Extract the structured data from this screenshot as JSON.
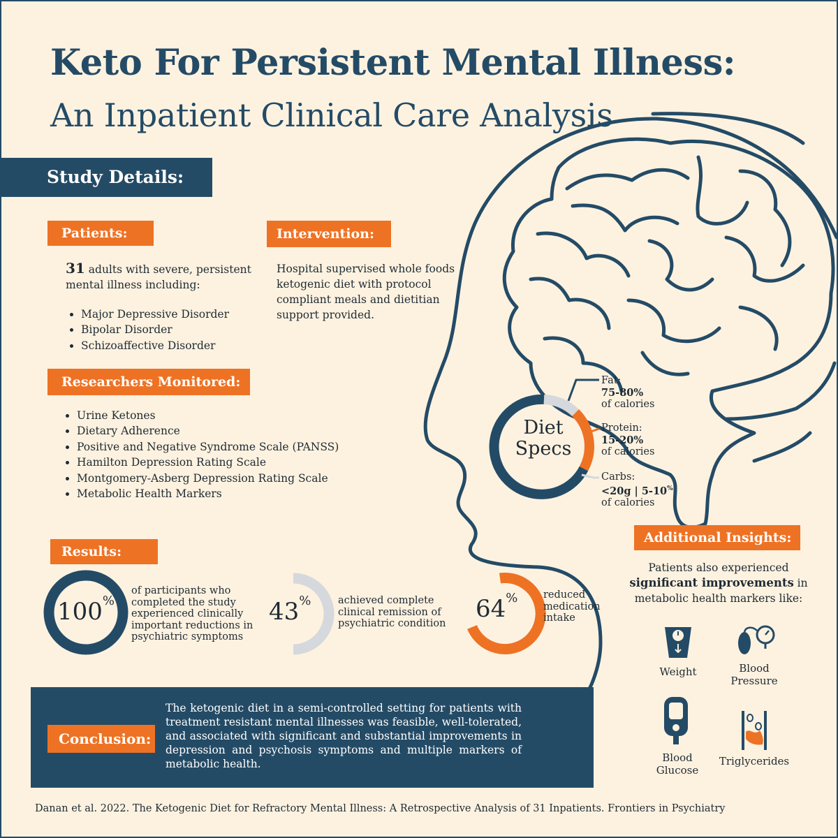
{
  "title": {
    "line1": "Keto For Persistent Mental Illness:",
    "line2": "An Inpatient Clinical Care Analysis"
  },
  "study_details": "Study Details:",
  "patients": {
    "heading": "Patients:",
    "count": "31",
    "description_line1": "adults with severe, persistent",
    "description_line2": "mental illness including:",
    "conditions": [
      "Major Depressive Disorder",
      "Bipolar Disorder",
      "Schizoaffective Disorder"
    ]
  },
  "intervention": {
    "heading": "Intervention:",
    "lines": [
      "Hospital supervised whole foods",
      "ketogenic diet with protocol",
      "compliant meals and dietitian",
      "support provided."
    ]
  },
  "researchers": {
    "heading": "Researchers Monitored:",
    "items": [
      "Urine Ketones",
      "Dietary Adherence",
      "Positive and Negative Syndrome Scale (PANSS)",
      "Hamilton Depression Rating Scale",
      "Montgomery-Asberg Depression Rating Scale",
      "Metabolic Health Markers"
    ]
  },
  "diet_specs": {
    "label_line1": "Diet",
    "label_line2": "Specs",
    "fat": {
      "label": "Fat:",
      "value": "75-80%",
      "unit": "of calories"
    },
    "protein": {
      "label": "Protein:",
      "value": "15-20%",
      "unit": "of calories"
    },
    "carbs": {
      "label": "Carbs:",
      "value": "<20g | 5-10",
      "pct": "%",
      "unit": "of calories"
    }
  },
  "results": {
    "heading": "Results:",
    "stats": [
      {
        "value": "100",
        "pct": "%",
        "fraction": 1.0,
        "lines": [
          "of participants who",
          "completed the study",
          "experienced clinically",
          "important reductions in",
          "psychiatric symptoms"
        ]
      },
      {
        "value": "43",
        "pct": "%",
        "fraction": 0.43,
        "lines": [
          "achieved complete",
          "clinical remission of",
          "psychiatric condition"
        ]
      },
      {
        "value": "64",
        "pct": "%",
        "fraction": 0.64,
        "lines": [
          "reduced",
          "medication",
          "intake"
        ]
      }
    ]
  },
  "insights": {
    "heading": "Additional Insights:",
    "line1": "Patients also experienced",
    "line2_bold": "significant improvements",
    "line2_rest": " in",
    "line3": "metabolic health markers like:",
    "markers": [
      {
        "label_lines": [
          "Weight"
        ],
        "icon": "scale-icon"
      },
      {
        "label_lines": [
          "Blood",
          "Pressure"
        ],
        "icon": "blood-pressure-icon"
      },
      {
        "label_lines": [
          "Blood",
          "Glucose"
        ],
        "icon": "glucose-meter-icon"
      },
      {
        "label_lines": [
          "Triglycerides"
        ],
        "icon": "artery-icon"
      }
    ]
  },
  "conclusion": {
    "heading": "Conclusion:",
    "text": "The ketogenic diet in a semi-controlled setting for patients with treatment resistant mental illnesses was feasible, well-tolerated, and associated with significant and substantial improvements in depression and psychosis symptoms and multiple markers of metabolic health."
  },
  "citation": "Danan et al. 2022. The Ketogenic Diet for Refractory Mental Illness: A Retrospective Analysis of 31 Inpatients. Frontiers in Psychiatry",
  "colors": {
    "navy": "#244b66",
    "orange": "#ee7224",
    "cream": "#fdf2e0",
    "grey": "#d5d8dc"
  }
}
